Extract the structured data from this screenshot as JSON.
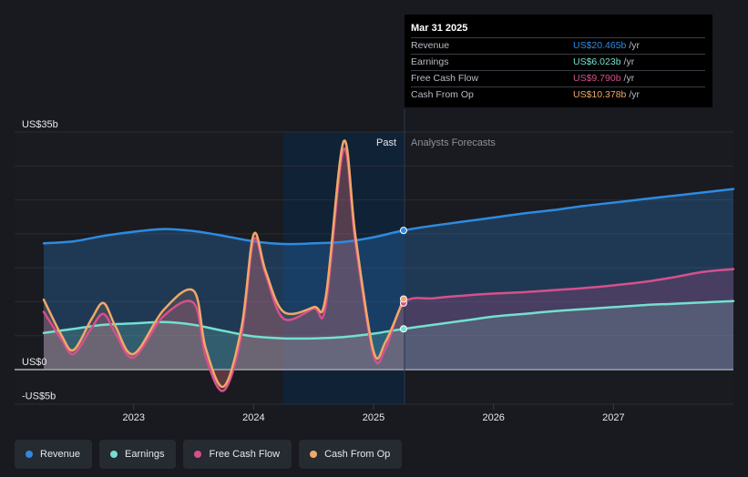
{
  "tooltip": {
    "date": "Mar 31 2025",
    "rows": [
      {
        "label": "Revenue",
        "value": "US$20.465b",
        "unit": "/yr",
        "color": "#2f8ae0"
      },
      {
        "label": "Earnings",
        "value": "US$6.023b",
        "unit": "/yr",
        "color": "#74e0cf"
      },
      {
        "label": "Free Cash Flow",
        "value": "US$9.790b",
        "unit": "/yr",
        "color": "#d6508c"
      },
      {
        "label": "Cash From Op",
        "value": "US$10.378b",
        "unit": "/yr",
        "color": "#f0a868"
      }
    ]
  },
  "labels": {
    "past": "Past",
    "forecast": "Analysts Forecasts"
  },
  "legend": [
    {
      "label": "Revenue",
      "color": "#2f8ae0"
    },
    {
      "label": "Earnings",
      "color": "#74e0cf"
    },
    {
      "label": "Free Cash Flow",
      "color": "#d6508c"
    },
    {
      "label": "Cash From Op",
      "color": "#f0a868"
    }
  ],
  "chart_data": {
    "type": "line",
    "ylim": [
      -5,
      35
    ],
    "xlim": [
      2022.25,
      2028.0
    ],
    "y_tick_labels": [
      {
        "value": 35,
        "label": "US$35b"
      },
      {
        "value": 0,
        "label": "US$0"
      },
      {
        "value": -5,
        "label": "-US$5b"
      }
    ],
    "x_ticks": [
      2023,
      2024,
      2025,
      2026,
      2027
    ],
    "x_tick_labels": [
      "2023",
      "2024",
      "2025",
      "2026",
      "2027"
    ],
    "past_start": 2024.25,
    "today": 2025.25,
    "grid": true,
    "series": [
      {
        "name": "Revenue",
        "color": "#2f8ae0",
        "points": [
          [
            2022.25,
            18.6
          ],
          [
            2022.5,
            18.9
          ],
          [
            2022.75,
            19.7
          ],
          [
            2023.0,
            20.3
          ],
          [
            2023.25,
            20.7
          ],
          [
            2023.5,
            20.4
          ],
          [
            2023.75,
            19.7
          ],
          [
            2024.0,
            18.9
          ],
          [
            2024.25,
            18.5
          ],
          [
            2024.5,
            18.6
          ],
          [
            2024.75,
            18.8
          ],
          [
            2025.0,
            19.5
          ],
          [
            2025.25,
            20.5
          ],
          [
            2025.5,
            21.2
          ],
          [
            2025.75,
            21.8
          ],
          [
            2026.0,
            22.4
          ],
          [
            2026.25,
            23.0
          ],
          [
            2026.5,
            23.5
          ],
          [
            2026.75,
            24.1
          ],
          [
            2027.0,
            24.6
          ],
          [
            2027.25,
            25.1
          ],
          [
            2027.5,
            25.6
          ],
          [
            2027.75,
            26.1
          ],
          [
            2028.0,
            26.6
          ]
        ]
      },
      {
        "name": "Earnings",
        "color": "#74e0cf",
        "points": [
          [
            2022.25,
            5.4
          ],
          [
            2022.5,
            6.0
          ],
          [
            2022.75,
            6.6
          ],
          [
            2023.0,
            6.8
          ],
          [
            2023.25,
            7.0
          ],
          [
            2023.5,
            6.6
          ],
          [
            2023.75,
            5.7
          ],
          [
            2024.0,
            4.9
          ],
          [
            2024.25,
            4.6
          ],
          [
            2024.5,
            4.6
          ],
          [
            2024.75,
            4.8
          ],
          [
            2025.0,
            5.3
          ],
          [
            2025.25,
            6.0
          ],
          [
            2025.5,
            6.6
          ],
          [
            2025.75,
            7.2
          ],
          [
            2026.0,
            7.8
          ],
          [
            2026.25,
            8.2
          ],
          [
            2026.5,
            8.6
          ],
          [
            2026.75,
            8.9
          ],
          [
            2027.0,
            9.2
          ],
          [
            2027.25,
            9.5
          ],
          [
            2027.5,
            9.7
          ],
          [
            2027.75,
            9.9
          ],
          [
            2028.0,
            10.1
          ]
        ]
      },
      {
        "name": "Free Cash Flow",
        "color": "#d6508c",
        "points": [
          [
            2022.25,
            8.5
          ],
          [
            2022.4,
            4.4
          ],
          [
            2022.5,
            2.3
          ],
          [
            2022.65,
            6.2
          ],
          [
            2022.75,
            8.2
          ],
          [
            2022.85,
            5.3
          ],
          [
            2023.0,
            1.8
          ],
          [
            2023.25,
            7.9
          ],
          [
            2023.5,
            9.8
          ],
          [
            2023.6,
            1.9
          ],
          [
            2023.75,
            -3.1
          ],
          [
            2023.9,
            5.2
          ],
          [
            2024.0,
            19.1
          ],
          [
            2024.1,
            14.0
          ],
          [
            2024.25,
            7.5
          ],
          [
            2024.5,
            9.0
          ],
          [
            2024.6,
            9.3
          ],
          [
            2024.75,
            32.4
          ],
          [
            2024.85,
            18.5
          ],
          [
            2025.0,
            2.1
          ],
          [
            2025.1,
            3.1
          ],
          [
            2025.25,
            9.8
          ],
          [
            2025.5,
            10.5
          ],
          [
            2025.75,
            10.9
          ],
          [
            2026.0,
            11.2
          ],
          [
            2026.25,
            11.4
          ],
          [
            2026.5,
            11.7
          ],
          [
            2026.75,
            12.0
          ],
          [
            2027.0,
            12.4
          ],
          [
            2027.25,
            12.9
          ],
          [
            2027.5,
            13.6
          ],
          [
            2027.75,
            14.4
          ],
          [
            2028.0,
            14.8
          ]
        ]
      },
      {
        "name": "Cash From Op",
        "color": "#f0a868",
        "points": [
          [
            2022.25,
            10.3
          ],
          [
            2022.4,
            5.0
          ],
          [
            2022.5,
            2.9
          ],
          [
            2022.65,
            7.5
          ],
          [
            2022.75,
            9.8
          ],
          [
            2022.85,
            6.3
          ],
          [
            2023.0,
            2.3
          ],
          [
            2023.25,
            8.8
          ],
          [
            2023.5,
            11.6
          ],
          [
            2023.6,
            3.2
          ],
          [
            2023.75,
            -2.5
          ],
          [
            2023.9,
            6.3
          ],
          [
            2024.0,
            19.9
          ],
          [
            2024.1,
            14.5
          ],
          [
            2024.25,
            8.5
          ],
          [
            2024.5,
            9.2
          ],
          [
            2024.6,
            10.6
          ],
          [
            2024.75,
            33.6
          ],
          [
            2024.85,
            19.5
          ],
          [
            2025.0,
            2.7
          ],
          [
            2025.1,
            4.1
          ],
          [
            2025.25,
            10.4
          ]
        ]
      }
    ]
  }
}
